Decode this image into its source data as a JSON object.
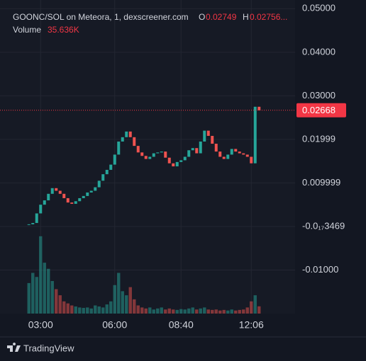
{
  "header": {
    "symbol": "GOONC/SOL on Meteora, 1, dexscreener.com",
    "o_label": "O",
    "h_label": "H",
    "h_value": "0.02756...",
    "volume_label": "Volume",
    "volume_value": "35.636K"
  },
  "footer": {
    "brand": "TradingView"
  },
  "chart_data": {
    "type": "candlestick",
    "categories": [
      null,
      null,
      null,
      "03:00",
      null,
      null,
      null,
      null,
      null,
      null,
      null,
      null,
      null,
      null,
      null,
      null,
      null,
      null,
      null,
      null,
      null,
      null,
      "06:00",
      null,
      null,
      null,
      null,
      null,
      null,
      null,
      null,
      null,
      null,
      null,
      null,
      null,
      null,
      null,
      null,
      "08:40",
      null,
      null,
      null,
      null,
      null,
      null,
      null,
      null,
      null,
      null,
      null,
      null,
      null,
      null,
      null,
      null,
      null,
      "12:06",
      null,
      null
    ],
    "open": [
      0.0004,
      0.0005,
      0.0008,
      0.003,
      0.005,
      0.006,
      0.0075,
      0.0088,
      0.0082,
      0.0075,
      0.0065,
      0.0055,
      0.0052,
      0.0058,
      0.0065,
      0.007,
      0.0078,
      0.0082,
      0.009,
      0.0105,
      0.012,
      0.013,
      0.0142,
      0.0165,
      0.0195,
      0.0205,
      0.0218,
      0.0205,
      0.0185,
      0.017,
      0.0162,
      0.0155,
      0.016,
      0.0168,
      0.017,
      0.0172,
      0.0158,
      0.0145,
      0.0138,
      0.0148,
      0.0152,
      0.016,
      0.0175,
      0.018,
      0.0168,
      0.0195,
      0.022,
      0.0208,
      0.019,
      0.0172,
      0.016,
      0.0155,
      0.0165,
      0.0178,
      0.0172,
      0.0168,
      0.0165,
      0.016,
      0.0145,
      0.02749
    ],
    "close": [
      0.0005,
      0.0008,
      0.003,
      0.005,
      0.006,
      0.0075,
      0.0088,
      0.0082,
      0.0075,
      0.0065,
      0.0055,
      0.0052,
      0.0058,
      0.0065,
      0.007,
      0.0078,
      0.0082,
      0.009,
      0.0105,
      0.012,
      0.013,
      0.0142,
      0.0165,
      0.0195,
      0.0205,
      0.0218,
      0.0205,
      0.0185,
      0.017,
      0.0162,
      0.0155,
      0.016,
      0.0168,
      0.017,
      0.0172,
      0.0158,
      0.0145,
      0.0138,
      0.0148,
      0.0152,
      0.016,
      0.0175,
      0.018,
      0.0168,
      0.0195,
      0.022,
      0.0208,
      0.019,
      0.0172,
      0.016,
      0.0155,
      0.0165,
      0.0178,
      0.0172,
      0.0168,
      0.0165,
      0.016,
      0.0145,
      0.02749,
      0.02668
    ],
    "volume": [
      150000,
      200000,
      180000,
      380000,
      250000,
      220000,
      160000,
      120000,
      90000,
      60000,
      50000,
      40000,
      35000,
      30000,
      28000,
      30000,
      25000,
      40000,
      35000,
      30000,
      45000,
      60000,
      140000,
      200000,
      110000,
      90000,
      130000,
      70000,
      40000,
      30000,
      25000,
      30000,
      20000,
      25000,
      30000,
      20000,
      25000,
      20000,
      18000,
      22000,
      20000,
      25000,
      30000,
      20000,
      25000,
      30000,
      20000,
      18000,
      20000,
      15000,
      18000,
      15000,
      20000,
      15000,
      18000,
      20000,
      30000,
      60000,
      90000,
      35636
    ],
    "up_color": "#26a69a",
    "down_color": "#ef5350",
    "last_price_color": "#f23645",
    "ylim": [
      -0.02,
      0.052
    ],
    "vlim": [
      0,
      400000
    ],
    "yticks": [
      {
        "value": 0.05,
        "label": "0.05000"
      },
      {
        "value": 0.04,
        "label": "0.04000"
      },
      {
        "value": 0.03,
        "label": "0.03000"
      },
      {
        "value": 0.02,
        "label": "0.01999"
      },
      {
        "value": 0.01,
        "label": "0.009999"
      },
      {
        "value": 0,
        "label": "-0.0₁₇3469"
      },
      {
        "value": -0.01,
        "label": "-0.01000"
      }
    ],
    "grid": true
  }
}
